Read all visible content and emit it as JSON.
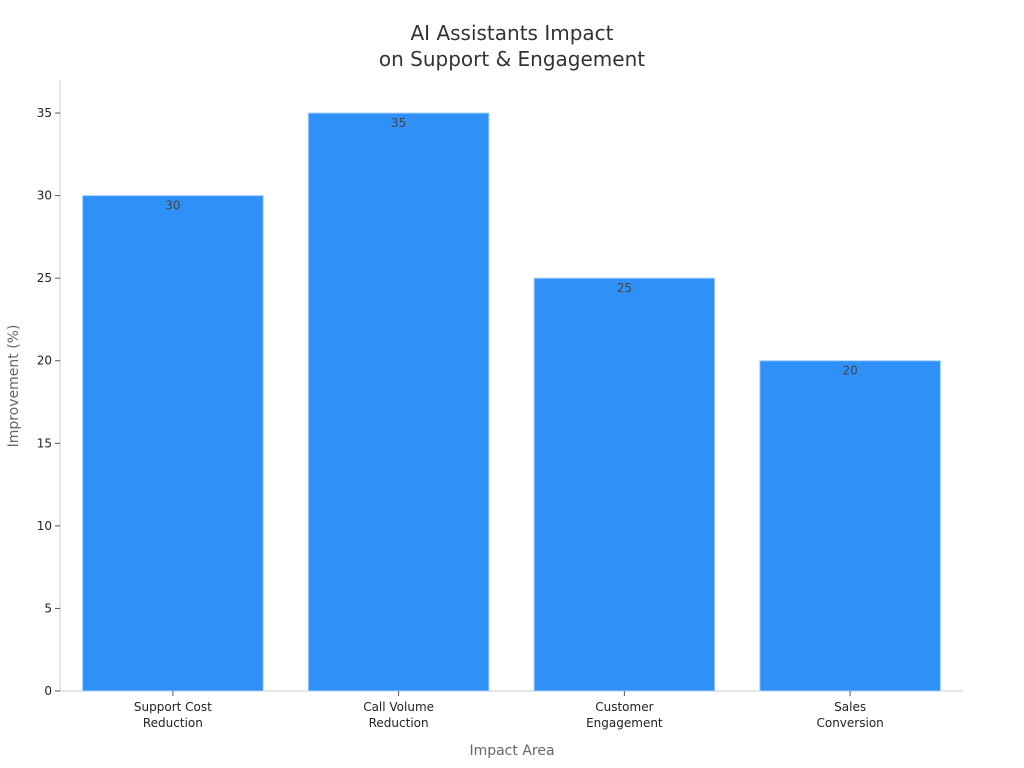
{
  "chart_data": {
    "type": "bar",
    "title_lines": [
      "AI Assistants Impact",
      "on Support & Engagement"
    ],
    "xlabel": "Impact Area",
    "ylabel": "Improvement (%)",
    "categories": [
      [
        "Support Cost",
        "Reduction"
      ],
      [
        "Call Volume",
        "Reduction"
      ],
      [
        "Customer",
        "Engagement"
      ],
      [
        "Sales",
        "Conversion"
      ]
    ],
    "values": [
      30,
      35,
      25,
      20
    ],
    "data_labels": [
      "30",
      "35",
      "25",
      "20"
    ],
    "ylim": [
      0,
      37
    ],
    "yticks": [
      0,
      5,
      10,
      15,
      20,
      25,
      30,
      35
    ],
    "bar_color": "#2f91f8",
    "bar_edge_color": "#a9d0ff",
    "axis_color": "#cccccc",
    "grid": false,
    "legend": "none"
  }
}
